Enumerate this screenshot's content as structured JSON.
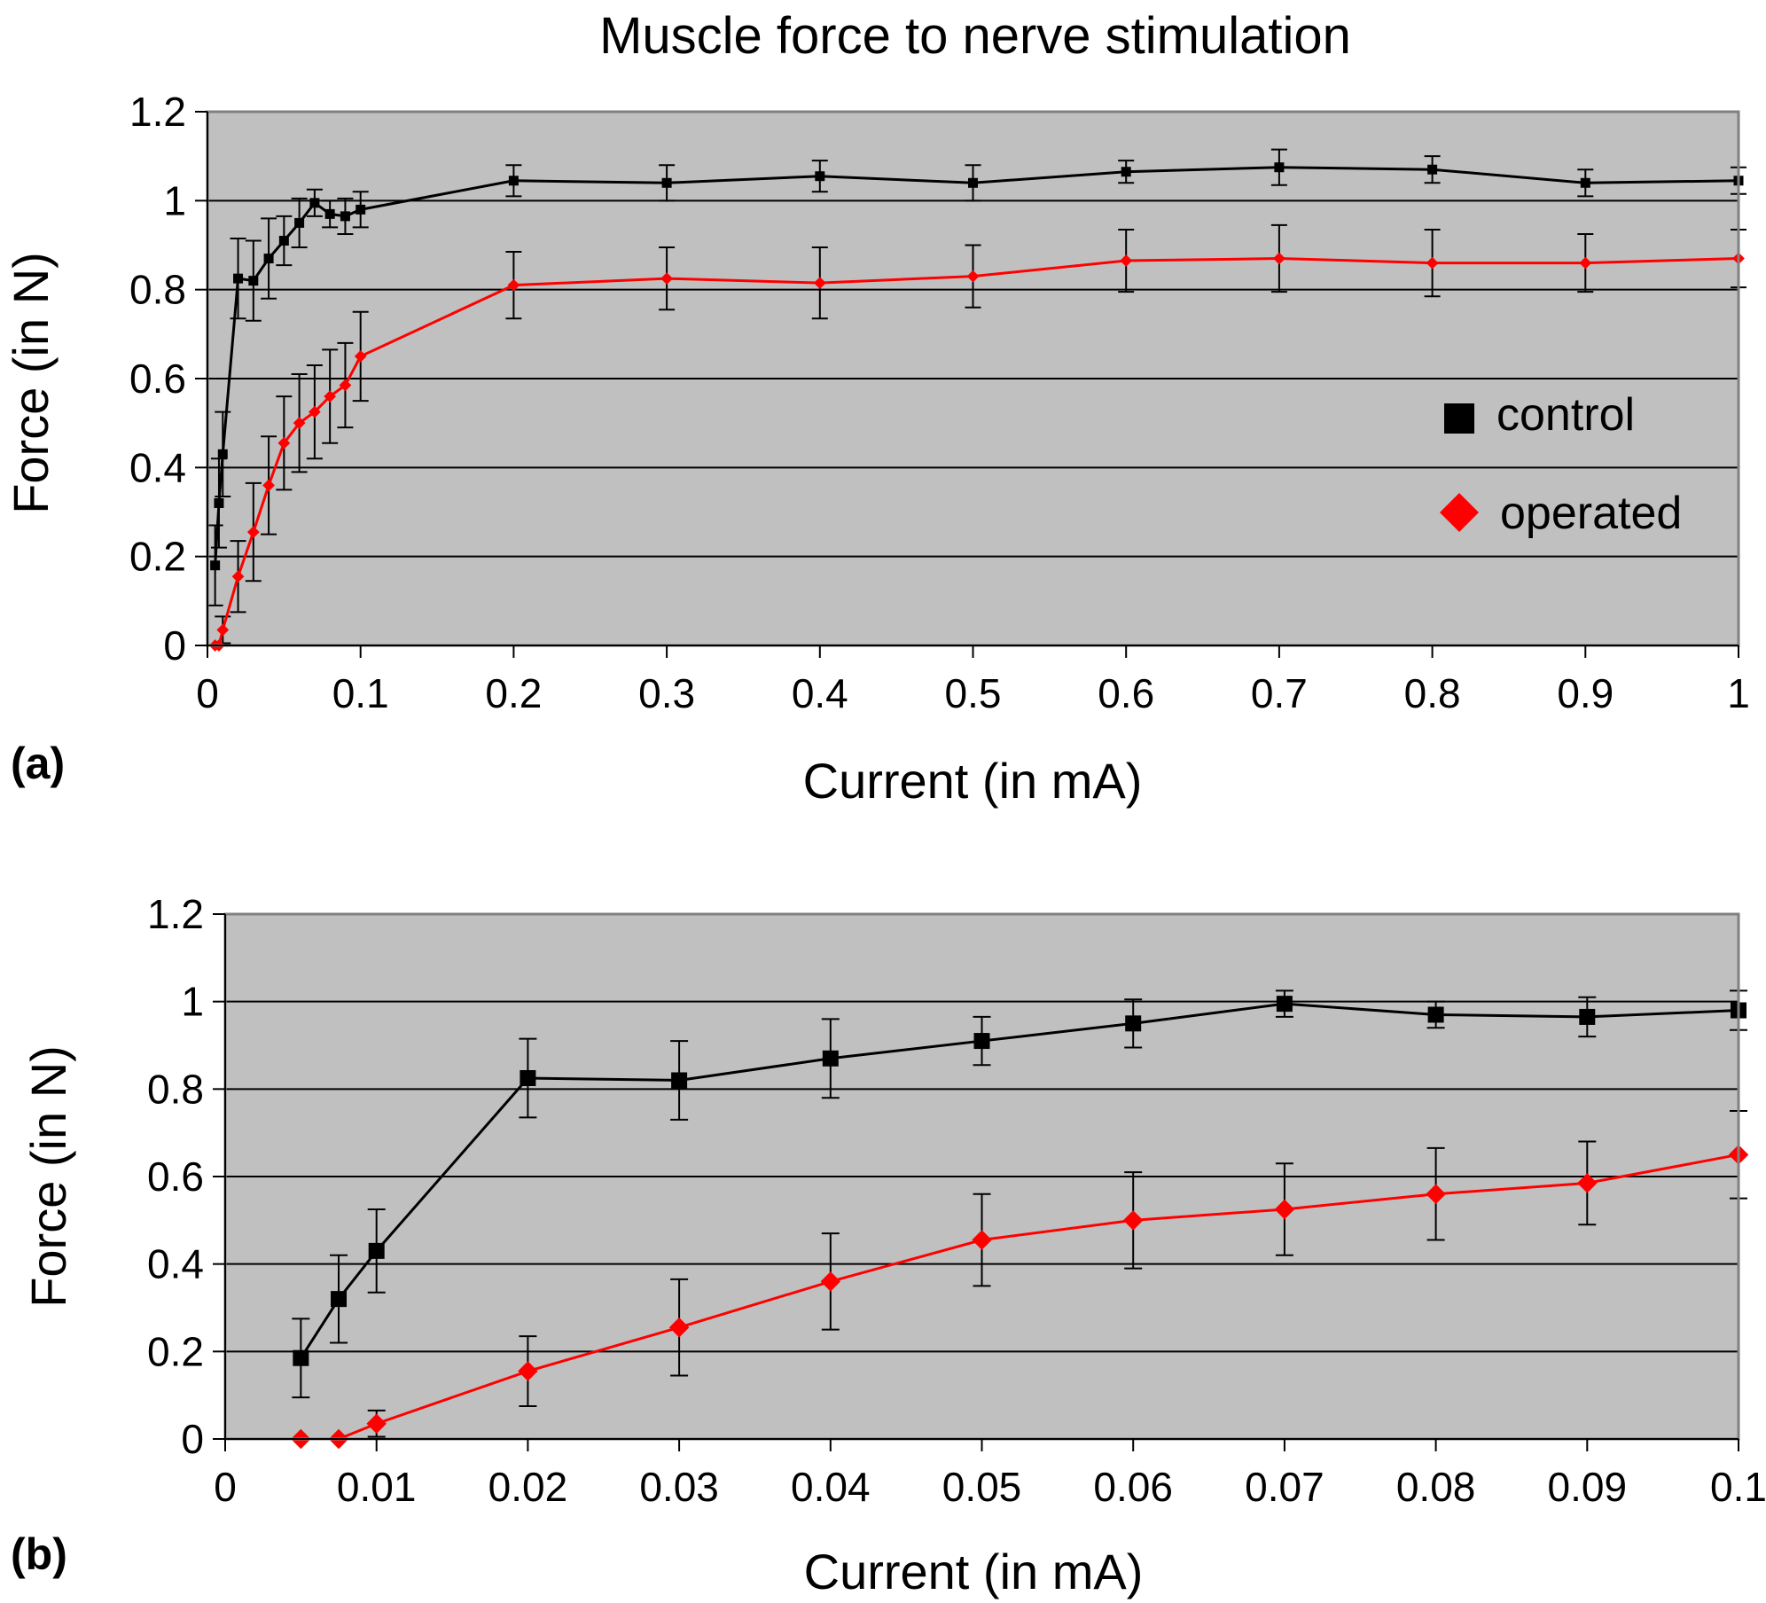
{
  "colors": {
    "plot_background": "#c0c0c0",
    "control": "#000000",
    "operated": "#ff0000",
    "gridline": "#000000"
  },
  "chart_data": [
    {
      "type": "line",
      "panel_label": "(a)",
      "title": "Muscle force to nerve stimulation",
      "xlabel": "Current (in mA)",
      "ylabel": "Force (in N)",
      "xlim": [
        0,
        1
      ],
      "ylim": [
        0,
        1.2
      ],
      "x_ticks": [
        "0",
        "0.1",
        "0.2",
        "0.3",
        "0.4",
        "0.5",
        "0.6",
        "0.7",
        "0.8",
        "0.9",
        "1"
      ],
      "y_ticks": [
        "0",
        "0.2",
        "0.4",
        "0.6",
        "0.8",
        "1",
        "1.2"
      ],
      "grid": "horizontal",
      "legend_position": "right",
      "series": [
        {
          "name": "control",
          "marker": "square",
          "x": [
            0.005,
            0.0075,
            0.01,
            0.02,
            0.03,
            0.04,
            0.05,
            0.06,
            0.07,
            0.08,
            0.09,
            0.1,
            0.2,
            0.3,
            0.4,
            0.5,
            0.6,
            0.7,
            0.8,
            0.9,
            1.0
          ],
          "y": [
            0.18,
            0.32,
            0.43,
            0.825,
            0.82,
            0.87,
            0.91,
            0.95,
            0.995,
            0.97,
            0.965,
            0.98,
            1.045,
            1.04,
            1.055,
            1.04,
            1.065,
            1.075,
            1.07,
            1.04,
            1.045
          ],
          "error": [
            0.09,
            0.1,
            0.095,
            0.09,
            0.09,
            0.09,
            0.055,
            0.055,
            0.03,
            0.03,
            0.04,
            0.04,
            0.035,
            0.04,
            0.035,
            0.04,
            0.025,
            0.04,
            0.03,
            0.03,
            0.03
          ]
        },
        {
          "name": "operated",
          "marker": "diamond",
          "x": [
            0.005,
            0.0075,
            0.01,
            0.02,
            0.03,
            0.04,
            0.05,
            0.06,
            0.07,
            0.08,
            0.09,
            0.1,
            0.2,
            0.3,
            0.4,
            0.5,
            0.6,
            0.7,
            0.8,
            0.9,
            1.0
          ],
          "y": [
            0.0,
            0.0,
            0.035,
            0.155,
            0.255,
            0.36,
            0.455,
            0.5,
            0.525,
            0.56,
            0.585,
            0.65,
            0.81,
            0.825,
            0.815,
            0.83,
            0.865,
            0.87,
            0.86,
            0.86,
            0.87
          ],
          "error": [
            0.0,
            0.0,
            0.03,
            0.08,
            0.11,
            0.11,
            0.105,
            0.11,
            0.105,
            0.105,
            0.095,
            0.1,
            0.075,
            0.07,
            0.08,
            0.07,
            0.07,
            0.075,
            0.075,
            0.065,
            0.065
          ]
        }
      ]
    },
    {
      "type": "line",
      "panel_label": "(b)",
      "xlabel": "Current (in mA)",
      "ylabel": "Force (in N)",
      "xlim": [
        0,
        0.1
      ],
      "ylim": [
        0,
        1.2
      ],
      "x_ticks": [
        "0",
        "0.01",
        "0.02",
        "0.03",
        "0.04",
        "0.05",
        "0.06",
        "0.07",
        "0.08",
        "0.09",
        "0.1"
      ],
      "y_ticks": [
        "0",
        "0.2",
        "0.4",
        "0.6",
        "0.8",
        "1",
        "1.2"
      ],
      "grid": "horizontal",
      "series": [
        {
          "name": "control",
          "marker": "square",
          "x": [
            0.005,
            0.0075,
            0.01,
            0.02,
            0.03,
            0.04,
            0.05,
            0.06,
            0.07,
            0.08,
            0.09,
            0.1
          ],
          "y": [
            0.185,
            0.32,
            0.43,
            0.825,
            0.82,
            0.87,
            0.91,
            0.95,
            0.995,
            0.97,
            0.965,
            0.98
          ],
          "error": [
            0.09,
            0.1,
            0.095,
            0.09,
            0.09,
            0.09,
            0.055,
            0.055,
            0.03,
            0.03,
            0.045,
            0.045
          ]
        },
        {
          "name": "operated",
          "marker": "diamond",
          "x": [
            0.005,
            0.0075,
            0.01,
            0.02,
            0.03,
            0.04,
            0.05,
            0.06,
            0.07,
            0.08,
            0.09,
            0.1
          ],
          "y": [
            0.0,
            0.0,
            0.035,
            0.155,
            0.255,
            0.36,
            0.455,
            0.5,
            0.525,
            0.56,
            0.585,
            0.65
          ],
          "error": [
            0.0,
            0.0,
            0.03,
            0.08,
            0.11,
            0.11,
            0.105,
            0.11,
            0.105,
            0.105,
            0.095,
            0.1
          ]
        }
      ]
    }
  ]
}
